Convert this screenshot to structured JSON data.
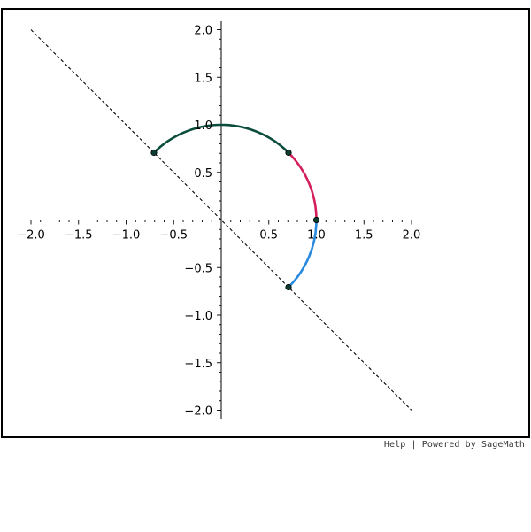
{
  "chart_data": {
    "type": "line",
    "xlim": [
      -2.0,
      2.0
    ],
    "ylim": [
      -2.0,
      2.0
    ],
    "x_ticks": [
      "−2.0",
      "−1.5",
      "−1.0",
      "−0.5",
      "0.5",
      "1.0",
      "1.5",
      "2.0"
    ],
    "y_ticks": [
      "2.0",
      "1.5",
      "1.0",
      "0.5",
      "−0.5",
      "−1.0",
      "−1.5",
      "−2.0"
    ],
    "x_tick_values": [
      -2.0,
      -1.5,
      -1.0,
      -0.5,
      0.5,
      1.0,
      1.5,
      2.0
    ],
    "y_tick_values": [
      2.0,
      1.5,
      1.0,
      0.5,
      -0.5,
      -1.0,
      -1.5,
      -2.0
    ],
    "grid": false,
    "series": [
      {
        "kind": "dashed-line",
        "color": "#000000",
        "points": [
          [
            -2.0,
            2.0
          ],
          [
            2.0,
            -2.0
          ]
        ]
      },
      {
        "kind": "arc",
        "color": "#0b4d3c",
        "center": [
          0,
          0
        ],
        "radius": 1.0,
        "angle_from_deg": 45,
        "angle_to_deg": 135
      },
      {
        "kind": "arc",
        "color": "#d31f5c",
        "center": [
          0,
          0
        ],
        "radius": 1.0,
        "angle_from_deg": 0,
        "angle_to_deg": 45
      },
      {
        "kind": "arc",
        "color": "#2a8ae0",
        "center": [
          0,
          0
        ],
        "radius": 1.0,
        "angle_from_deg": -45,
        "angle_to_deg": 0
      }
    ],
    "points": [
      {
        "x": -0.7071,
        "y": 0.7071
      },
      {
        "x": 0.7071,
        "y": 0.7071
      },
      {
        "x": 1.0,
        "y": 0.0
      },
      {
        "x": 0.7071,
        "y": -0.7071
      }
    ]
  },
  "footer": {
    "help_label": "Help",
    "separator": "|",
    "powered_by_label": "Powered by SageMath"
  }
}
